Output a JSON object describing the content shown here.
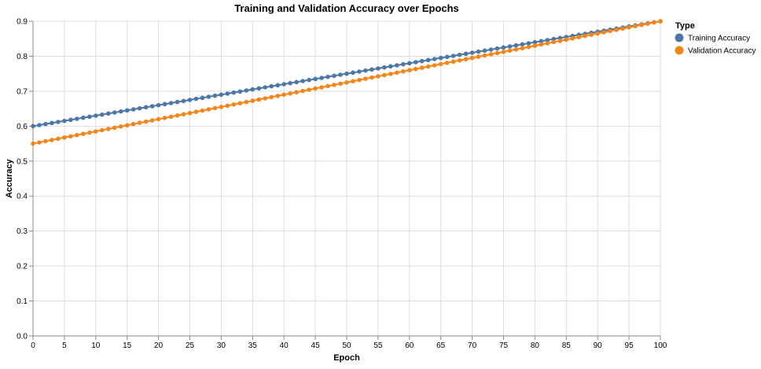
{
  "chart_data": {
    "type": "line",
    "title": "Training and Validation Accuracy over Epochs",
    "xlabel": "Epoch",
    "ylabel": "Accuracy",
    "xlim": [
      0,
      100
    ],
    "ylim": [
      0,
      0.9
    ],
    "x_ticks": [
      0,
      5,
      10,
      15,
      20,
      25,
      30,
      35,
      40,
      45,
      50,
      55,
      60,
      65,
      70,
      75,
      80,
      85,
      90,
      95,
      100
    ],
    "y_ticks": [
      0.0,
      0.1,
      0.2,
      0.3,
      0.4,
      0.5,
      0.6,
      0.7,
      0.8,
      0.9
    ],
    "x_tick_labels": [
      "0",
      "5",
      "10",
      "15",
      "20",
      "25",
      "30",
      "35",
      "40",
      "45",
      "50",
      "55",
      "60",
      "65",
      "70",
      "75",
      "80",
      "85",
      "90",
      "95",
      "100"
    ],
    "y_tick_labels": [
      "0.0",
      "0.1",
      "0.2",
      "0.3",
      "0.4",
      "0.5",
      "0.6",
      "0.7",
      "0.8",
      "0.9"
    ],
    "grid": true,
    "legend": {
      "title": "Type",
      "placement": "right"
    },
    "x": [
      0,
      1,
      2,
      3,
      4,
      5,
      6,
      7,
      8,
      9,
      10,
      11,
      12,
      13,
      14,
      15,
      16,
      17,
      18,
      19,
      20,
      21,
      22,
      23,
      24,
      25,
      26,
      27,
      28,
      29,
      30,
      31,
      32,
      33,
      34,
      35,
      36,
      37,
      38,
      39,
      40,
      41,
      42,
      43,
      44,
      45,
      46,
      47,
      48,
      49,
      50,
      51,
      52,
      53,
      54,
      55,
      56,
      57,
      58,
      59,
      60,
      61,
      62,
      63,
      64,
      65,
      66,
      67,
      68,
      69,
      70,
      71,
      72,
      73,
      74,
      75,
      76,
      77,
      78,
      79,
      80,
      81,
      82,
      83,
      84,
      85,
      86,
      87,
      88,
      89,
      90,
      91,
      92,
      93,
      94,
      95,
      96,
      97,
      98,
      99,
      100
    ],
    "series": [
      {
        "name": "Training Accuracy",
        "color": "#4c78a8",
        "values": [
          0.6,
          0.603,
          0.606,
          0.609,
          0.612,
          0.615,
          0.618,
          0.621,
          0.624,
          0.627,
          0.63,
          0.633,
          0.636,
          0.639,
          0.642,
          0.645,
          0.648,
          0.651,
          0.654,
          0.657,
          0.66,
          0.663,
          0.666,
          0.669,
          0.672,
          0.675,
          0.678,
          0.681,
          0.684,
          0.687,
          0.69,
          0.693,
          0.696,
          0.699,
          0.702,
          0.705,
          0.708,
          0.711,
          0.714,
          0.717,
          0.72,
          0.723,
          0.726,
          0.729,
          0.732,
          0.735,
          0.738,
          0.741,
          0.744,
          0.747,
          0.75,
          0.753,
          0.756,
          0.759,
          0.762,
          0.765,
          0.768,
          0.771,
          0.774,
          0.777,
          0.78,
          0.783,
          0.786,
          0.789,
          0.792,
          0.795,
          0.798,
          0.801,
          0.804,
          0.807,
          0.81,
          0.813,
          0.816,
          0.819,
          0.822,
          0.825,
          0.828,
          0.831,
          0.834,
          0.837,
          0.84,
          0.843,
          0.846,
          0.849,
          0.852,
          0.855,
          0.858,
          0.861,
          0.864,
          0.867,
          0.87,
          0.873,
          0.876,
          0.879,
          0.882,
          0.885,
          0.888,
          0.891,
          0.894,
          0.897,
          0.9
        ]
      },
      {
        "name": "Validation Accuracy",
        "color": "#f58518",
        "values": [
          0.55,
          0.5535,
          0.557,
          0.5605,
          0.564,
          0.5675,
          0.571,
          0.5745,
          0.578,
          0.5815,
          0.585,
          0.5885,
          0.592,
          0.5955,
          0.599,
          0.6025,
          0.606,
          0.6095,
          0.613,
          0.6165,
          0.62,
          0.6235,
          0.627,
          0.6305,
          0.634,
          0.6375,
          0.641,
          0.6445,
          0.648,
          0.6515,
          0.655,
          0.6585,
          0.662,
          0.6655,
          0.669,
          0.6725,
          0.676,
          0.6795,
          0.683,
          0.6865,
          0.69,
          0.6935,
          0.697,
          0.7005,
          0.704,
          0.7075,
          0.711,
          0.7145,
          0.718,
          0.7215,
          0.725,
          0.7285,
          0.732,
          0.7355,
          0.739,
          0.7425,
          0.746,
          0.7495,
          0.753,
          0.7565,
          0.76,
          0.7635,
          0.767,
          0.7705,
          0.774,
          0.7775,
          0.781,
          0.7845,
          0.788,
          0.7915,
          0.795,
          0.7985,
          0.802,
          0.8055,
          0.809,
          0.8125,
          0.816,
          0.8195,
          0.823,
          0.8265,
          0.83,
          0.8335,
          0.837,
          0.8405,
          0.844,
          0.8475,
          0.851,
          0.8545,
          0.858,
          0.8615,
          0.865,
          0.8685,
          0.872,
          0.8755,
          0.879,
          0.8825,
          0.886,
          0.8895,
          0.893,
          0.8965,
          0.9
        ]
      }
    ]
  }
}
